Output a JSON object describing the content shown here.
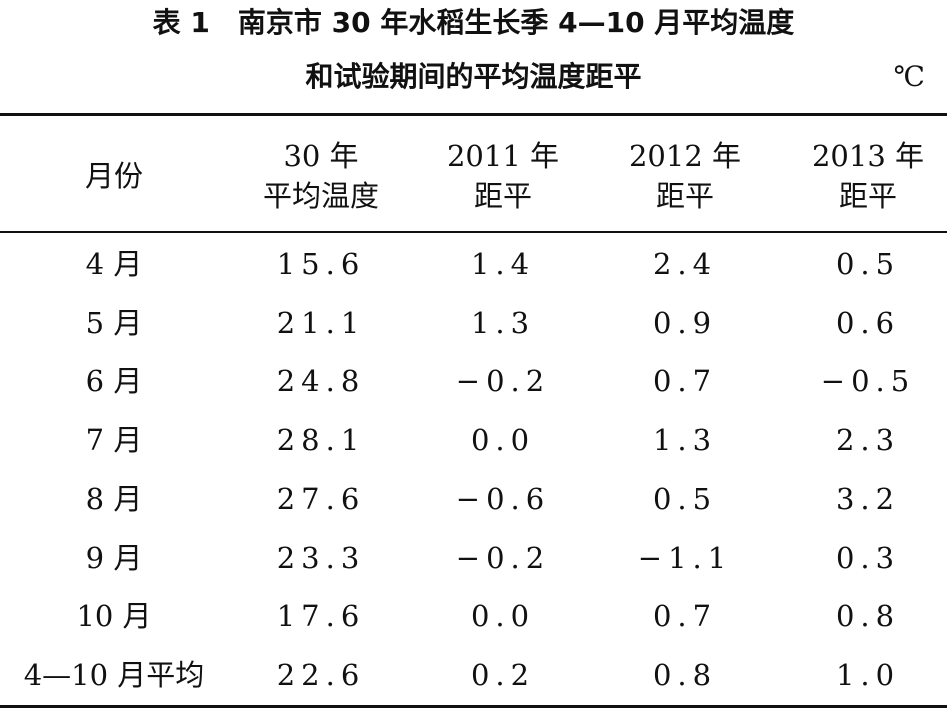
{
  "title": {
    "label": "表 1",
    "text": "南京市 30 年水稻生长季 4—10 月平均温度",
    "line2": "和试验期间的平均温度距平"
  },
  "unit": "℃",
  "table": {
    "headers": [
      {
        "line1": "月份",
        "line2": ""
      },
      {
        "line1": "30 年",
        "line2": "平均温度"
      },
      {
        "line1": "2011 年",
        "line2": "距平"
      },
      {
        "line1": "2012 年",
        "line2": "距平"
      },
      {
        "line1": "2013 年",
        "line2": "距平"
      }
    ],
    "rows": [
      [
        "4 月",
        "15.6",
        "1.4",
        "2.4",
        "0.5"
      ],
      [
        "5 月",
        "21.1",
        "1.3",
        "0.9",
        "0.6"
      ],
      [
        "6 月",
        "24.8",
        "−0.2",
        "0.7",
        "−0.5"
      ],
      [
        "7 月",
        "28.1",
        "0.0",
        "1.3",
        "2.3"
      ],
      [
        "8 月",
        "27.6",
        "−0.6",
        "0.5",
        "3.2"
      ],
      [
        "9 月",
        "23.3",
        "−0.2",
        "−1.1",
        "0.3"
      ],
      [
        "10 月",
        "17.6",
        "0.0",
        "0.7",
        "0.8"
      ],
      [
        "4—10 月平均",
        "22.6",
        "0.2",
        "0.8",
        "1.0"
      ]
    ]
  }
}
